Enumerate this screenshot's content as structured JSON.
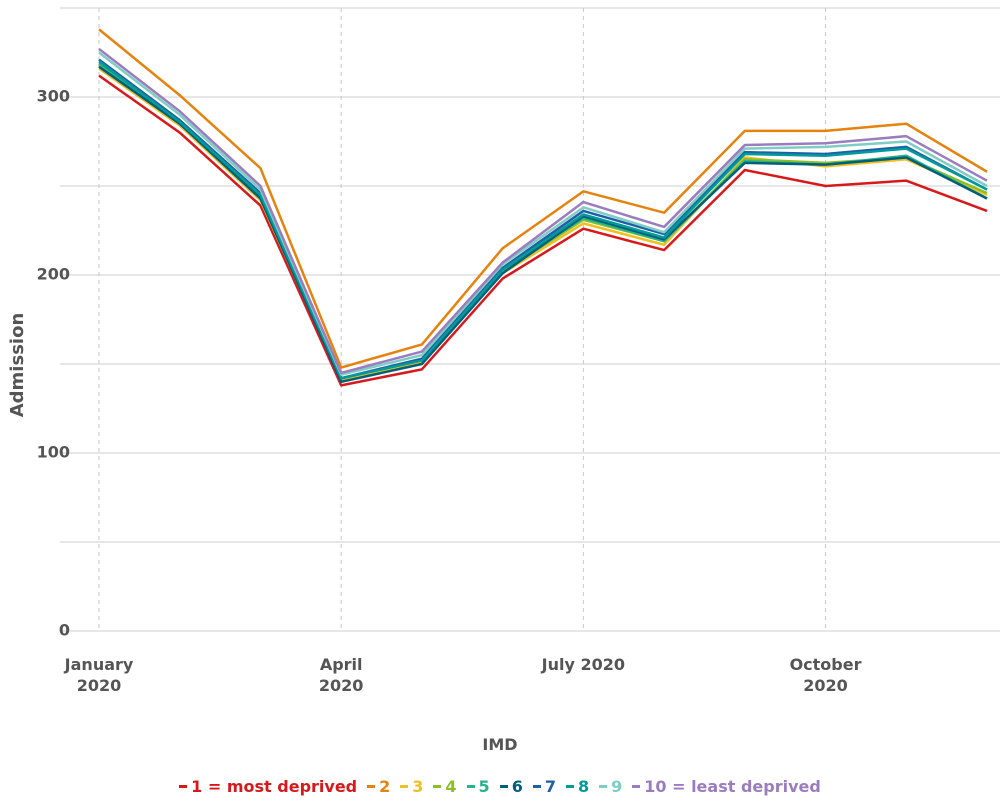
{
  "chart_data": {
    "type": "line",
    "x_label": "",
    "y_label": "Admission",
    "legend_title": "IMD",
    "x": [
      "2020-01",
      "2020-02",
      "2020-03",
      "2020-04",
      "2020-05",
      "2020-06",
      "2020-07",
      "2020-08",
      "2020-09",
      "2020-10",
      "2020-11",
      "2020-12"
    ],
    "xticks": [
      {
        "value": "2020-01",
        "label": "January 2020"
      },
      {
        "value": "2020-04",
        "label": "April 2020"
      },
      {
        "value": "2020-07",
        "label": "July 2020"
      },
      {
        "value": "2020-10",
        "label": "October 2020"
      }
    ],
    "ylim": [
      0,
      350
    ],
    "yticks": [
      0,
      100,
      200,
      300
    ],
    "minor_yticks": [
      50,
      150,
      250,
      350
    ],
    "grid": true,
    "legend": "bottom",
    "series": [
      {
        "name": "1 = most deprived",
        "color": "#d7191c",
        "values": [
          312,
          280,
          239,
          138,
          147,
          198,
          226,
          214,
          259,
          250,
          253,
          236
        ]
      },
      {
        "name": "2",
        "color": "#e6820e",
        "values": [
          338,
          301,
          260,
          148,
          161,
          215,
          247,
          235,
          281,
          281,
          285,
          258
        ]
      },
      {
        "name": "3",
        "color": "#f0c020",
        "values": [
          316,
          284,
          242,
          141,
          151,
          201,
          229,
          217,
          266,
          261,
          265,
          245
        ]
      },
      {
        "name": "4",
        "color": "#8cbf26",
        "values": [
          318,
          285,
          243,
          142,
          152,
          202,
          231,
          219,
          265,
          263,
          266,
          246
        ]
      },
      {
        "name": "5",
        "color": "#26b38a",
        "values": [
          319,
          286,
          244,
          142,
          152,
          203,
          232,
          219,
          264,
          262,
          267,
          243
        ]
      },
      {
        "name": "6",
        "color": "#00607a",
        "values": [
          317,
          285,
          243,
          140,
          150,
          201,
          233,
          220,
          263,
          262,
          266,
          243
        ]
      },
      {
        "name": "7",
        "color": "#1e5fa6",
        "values": [
          321,
          287,
          246,
          142,
          153,
          204,
          236,
          223,
          269,
          268,
          272,
          248
        ]
      },
      {
        "name": "8",
        "color": "#009a9a",
        "values": [
          320,
          286,
          245,
          142,
          152,
          203,
          234,
          221,
          268,
          267,
          271,
          248
        ]
      },
      {
        "name": "9",
        "color": "#7fcdc4",
        "values": [
          325,
          290,
          248,
          144,
          155,
          206,
          238,
          224,
          271,
          272,
          275,
          250
        ]
      },
      {
        "name": "10 = least deprived",
        "color": "#9b7dbf",
        "values": [
          327,
          292,
          250,
          145,
          157,
          207,
          241,
          227,
          273,
          274,
          278,
          253
        ]
      }
    ]
  }
}
